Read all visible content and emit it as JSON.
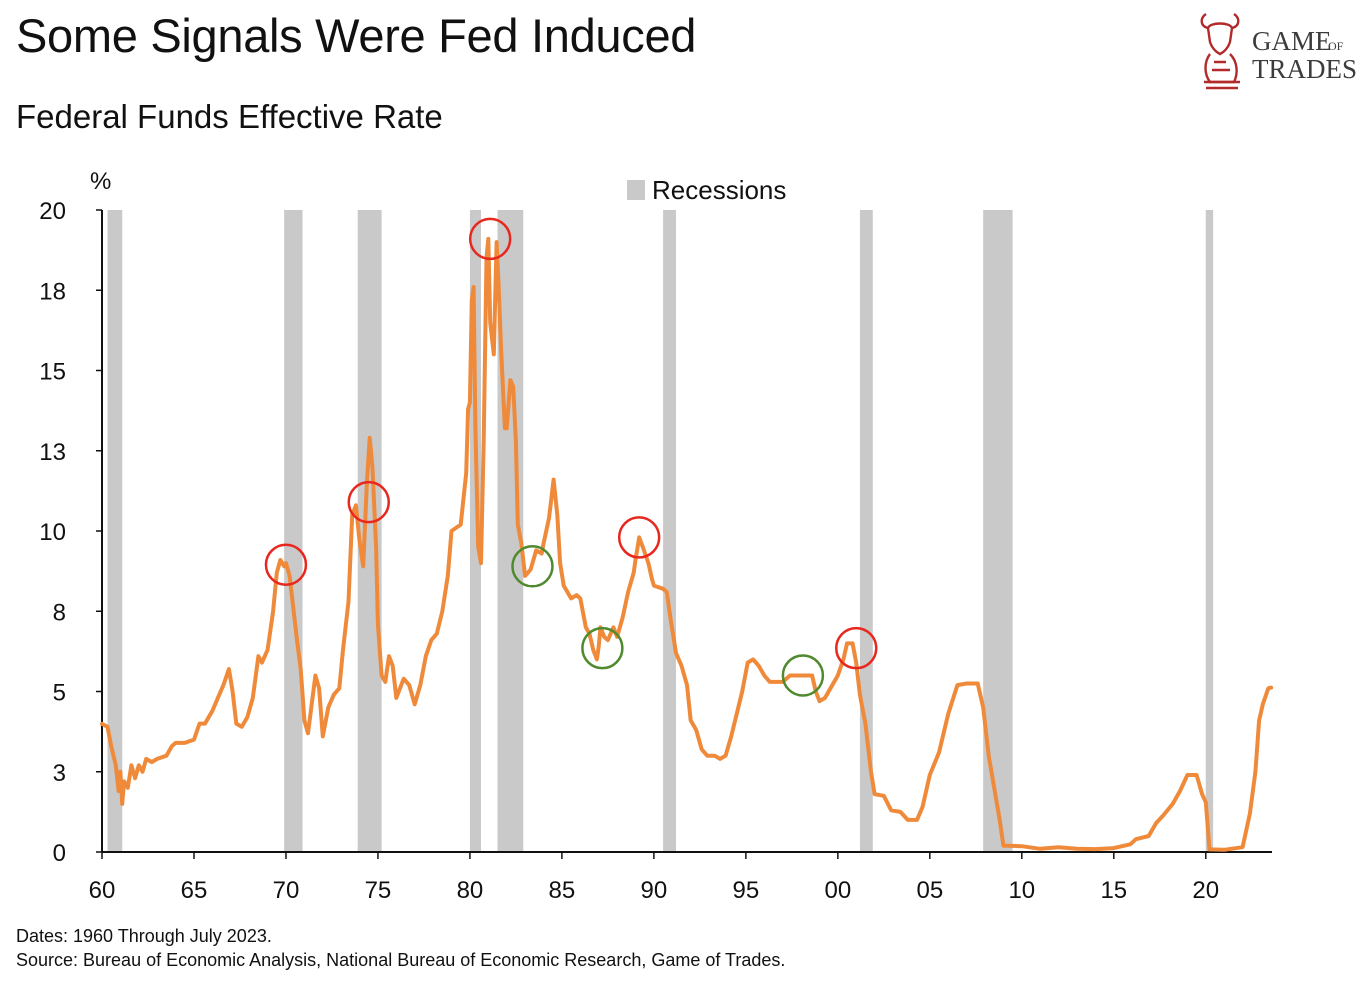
{
  "title": "Some Signals Were Fed Induced",
  "subtitle": "Federal Funds Effective Rate",
  "footer": {
    "dates": "Dates: 1960 Through July 2023.",
    "source": "Source: Bureau of Economic Analysis, National Bureau of Economic Research, Game of Trades."
  },
  "logo": {
    "line1": "GAME",
    "line1_small": "OF",
    "line2": "TRADES",
    "icon": "bull-knight-icon",
    "color": "#b22a2a"
  },
  "colors": {
    "line": "#ef8a3a",
    "recession": "#c9c9c9",
    "red_circle": "#e8281e",
    "green_circle": "#4f8a2e"
  },
  "chart_data": {
    "type": "line",
    "ylabel": "%",
    "ylim": [
      0,
      20
    ],
    "xlim": [
      1960,
      2023.6
    ],
    "y_ticks": [
      {
        "value": 0,
        "label": "0"
      },
      {
        "value": 2.5,
        "label": "3"
      },
      {
        "value": 5,
        "label": "5"
      },
      {
        "value": 7.5,
        "label": "8"
      },
      {
        "value": 10,
        "label": "10"
      },
      {
        "value": 12.5,
        "label": "13"
      },
      {
        "value": 15,
        "label": "15"
      },
      {
        "value": 17.5,
        "label": "18"
      },
      {
        "value": 20,
        "label": "20"
      }
    ],
    "x_ticks": [
      {
        "value": 1960,
        "label": "60"
      },
      {
        "value": 1965,
        "label": "65"
      },
      {
        "value": 1970,
        "label": "70"
      },
      {
        "value": 1975,
        "label": "75"
      },
      {
        "value": 1980,
        "label": "80"
      },
      {
        "value": 1985,
        "label": "85"
      },
      {
        "value": 1990,
        "label": "90"
      },
      {
        "value": 1995,
        "label": "95"
      },
      {
        "value": 2000,
        "label": "00"
      },
      {
        "value": 2005,
        "label": "05"
      },
      {
        "value": 2010,
        "label": "10"
      },
      {
        "value": 2015,
        "label": "15"
      },
      {
        "value": 2020,
        "label": "20"
      }
    ],
    "legend": {
      "label": "Recessions",
      "position": "top-center"
    },
    "recessions": [
      [
        1960.3,
        1961.1
      ],
      [
        1969.9,
        1970.9
      ],
      [
        1973.9,
        1975.2
      ],
      [
        1980.0,
        1980.6
      ],
      [
        1981.5,
        1982.9
      ],
      [
        1990.5,
        1991.2
      ],
      [
        2001.2,
        2001.9
      ],
      [
        2007.9,
        2009.5
      ],
      [
        2020.0,
        2020.4
      ]
    ],
    "series": [
      {
        "points": [
          [
            1960.0,
            3.99
          ],
          [
            1960.3,
            3.9
          ],
          [
            1960.5,
            3.3
          ],
          [
            1960.75,
            2.7
          ],
          [
            1960.9,
            1.9
          ],
          [
            1961.0,
            2.5
          ],
          [
            1961.1,
            1.5
          ],
          [
            1961.2,
            2.2
          ],
          [
            1961.4,
            2.0
          ],
          [
            1961.6,
            2.7
          ],
          [
            1961.8,
            2.3
          ],
          [
            1962.0,
            2.7
          ],
          [
            1962.2,
            2.5
          ],
          [
            1962.4,
            2.9
          ],
          [
            1962.7,
            2.8
          ],
          [
            1963.0,
            2.9
          ],
          [
            1963.5,
            3.0
          ],
          [
            1963.8,
            3.3
          ],
          [
            1964.0,
            3.4
          ],
          [
            1964.5,
            3.4
          ],
          [
            1965.0,
            3.5
          ],
          [
            1965.3,
            4.0
          ],
          [
            1965.6,
            4.0
          ],
          [
            1966.0,
            4.4
          ],
          [
            1966.3,
            4.8
          ],
          [
            1966.6,
            5.2
          ],
          [
            1966.9,
            5.7
          ],
          [
            1967.1,
            5.0
          ],
          [
            1967.3,
            4.0
          ],
          [
            1967.6,
            3.9
          ],
          [
            1967.9,
            4.2
          ],
          [
            1968.2,
            4.8
          ],
          [
            1968.5,
            6.1
          ],
          [
            1968.7,
            5.9
          ],
          [
            1969.0,
            6.3
          ],
          [
            1969.3,
            7.5
          ],
          [
            1969.5,
            8.7
          ],
          [
            1969.7,
            9.1
          ],
          [
            1969.9,
            8.9
          ],
          [
            1970.0,
            9.0
          ],
          [
            1970.2,
            8.6
          ],
          [
            1970.4,
            7.6
          ],
          [
            1970.6,
            6.6
          ],
          [
            1970.8,
            5.7
          ],
          [
            1971.0,
            4.1
          ],
          [
            1971.2,
            3.7
          ],
          [
            1971.4,
            4.6
          ],
          [
            1971.6,
            5.5
          ],
          [
            1971.8,
            5.1
          ],
          [
            1972.0,
            3.6
          ],
          [
            1972.3,
            4.5
          ],
          [
            1972.6,
            4.9
          ],
          [
            1972.9,
            5.1
          ],
          [
            1973.1,
            6.3
          ],
          [
            1973.4,
            7.8
          ],
          [
            1973.6,
            10.5
          ],
          [
            1973.8,
            10.8
          ],
          [
            1974.0,
            9.7
          ],
          [
            1974.2,
            8.9
          ],
          [
            1974.4,
            11.5
          ],
          [
            1974.55,
            12.9
          ],
          [
            1974.7,
            12.0
          ],
          [
            1974.9,
            9.5
          ],
          [
            1975.0,
            7.1
          ],
          [
            1975.2,
            5.5
          ],
          [
            1975.4,
            5.3
          ],
          [
            1975.6,
            6.1
          ],
          [
            1975.8,
            5.8
          ],
          [
            1976.0,
            4.8
          ],
          [
            1976.4,
            5.4
          ],
          [
            1976.7,
            5.2
          ],
          [
            1977.0,
            4.6
          ],
          [
            1977.3,
            5.2
          ],
          [
            1977.6,
            6.1
          ],
          [
            1977.9,
            6.6
          ],
          [
            1978.2,
            6.8
          ],
          [
            1978.5,
            7.5
          ],
          [
            1978.8,
            8.6
          ],
          [
            1979.0,
            10.0
          ],
          [
            1979.5,
            10.2
          ],
          [
            1979.8,
            11.8
          ],
          [
            1979.9,
            13.8
          ],
          [
            1980.0,
            14.0
          ],
          [
            1980.1,
            17.2
          ],
          [
            1980.2,
            17.6
          ],
          [
            1980.3,
            13.2
          ],
          [
            1980.45,
            9.5
          ],
          [
            1980.6,
            9.0
          ],
          [
            1980.75,
            12.8
          ],
          [
            1980.9,
            18.5
          ],
          [
            1981.0,
            19.1
          ],
          [
            1981.1,
            16.5
          ],
          [
            1981.3,
            15.5
          ],
          [
            1981.45,
            19.0
          ],
          [
            1981.55,
            17.8
          ],
          [
            1981.7,
            15.6
          ],
          [
            1981.9,
            13.2
          ],
          [
            1982.0,
            13.2
          ],
          [
            1982.2,
            14.7
          ],
          [
            1982.35,
            14.5
          ],
          [
            1982.5,
            12.8
          ],
          [
            1982.6,
            10.2
          ],
          [
            1982.8,
            9.6
          ],
          [
            1983.0,
            8.6
          ],
          [
            1983.3,
            8.8
          ],
          [
            1983.6,
            9.4
          ],
          [
            1983.9,
            9.3
          ],
          [
            1984.0,
            9.6
          ],
          [
            1984.3,
            10.4
          ],
          [
            1984.55,
            11.6
          ],
          [
            1984.75,
            10.5
          ],
          [
            1984.9,
            9.0
          ],
          [
            1985.1,
            8.3
          ],
          [
            1985.5,
            7.9
          ],
          [
            1985.8,
            8.0
          ],
          [
            1986.0,
            7.9
          ],
          [
            1986.3,
            7.0
          ],
          [
            1986.5,
            6.8
          ],
          [
            1986.7,
            6.3
          ],
          [
            1986.9,
            6.0
          ],
          [
            1987.0,
            6.4
          ],
          [
            1987.1,
            7.0
          ],
          [
            1987.3,
            6.7
          ],
          [
            1987.5,
            6.6
          ],
          [
            1987.8,
            7.0
          ],
          [
            1988.0,
            6.7
          ],
          [
            1988.3,
            7.3
          ],
          [
            1988.6,
            8.1
          ],
          [
            1988.9,
            8.7
          ],
          [
            1989.0,
            9.1
          ],
          [
            1989.2,
            9.8
          ],
          [
            1989.4,
            9.5
          ],
          [
            1989.7,
            9.0
          ],
          [
            1989.9,
            8.5
          ],
          [
            1990.0,
            8.3
          ],
          [
            1990.5,
            8.2
          ],
          [
            1990.7,
            8.1
          ],
          [
            1990.9,
            7.3
          ],
          [
            1991.2,
            6.2
          ],
          [
            1991.5,
            5.8
          ],
          [
            1991.8,
            5.2
          ],
          [
            1992.0,
            4.1
          ],
          [
            1992.3,
            3.8
          ],
          [
            1992.6,
            3.2
          ],
          [
            1992.9,
            3.0
          ],
          [
            1993.3,
            3.0
          ],
          [
            1993.6,
            2.9
          ],
          [
            1993.9,
            3.0
          ],
          [
            1994.2,
            3.6
          ],
          [
            1994.5,
            4.3
          ],
          [
            1994.8,
            5.0
          ],
          [
            1995.1,
            5.9
          ],
          [
            1995.4,
            6.0
          ],
          [
            1995.7,
            5.8
          ],
          [
            1996.0,
            5.5
          ],
          [
            1996.3,
            5.3
          ],
          [
            1996.6,
            5.3
          ],
          [
            1997.0,
            5.3
          ],
          [
            1997.4,
            5.5
          ],
          [
            1997.8,
            5.5
          ],
          [
            1998.2,
            5.5
          ],
          [
            1998.6,
            5.5
          ],
          [
            1998.8,
            5.0
          ],
          [
            1999.0,
            4.7
          ],
          [
            1999.3,
            4.8
          ],
          [
            1999.6,
            5.1
          ],
          [
            2000.0,
            5.5
          ],
          [
            2000.3,
            6.0
          ],
          [
            2000.5,
            6.5
          ],
          [
            2000.8,
            6.5
          ],
          [
            2001.0,
            5.9
          ],
          [
            2001.2,
            4.9
          ],
          [
            2001.5,
            4.0
          ],
          [
            2001.8,
            2.5
          ],
          [
            2002.0,
            1.8
          ],
          [
            2002.5,
            1.75
          ],
          [
            2002.9,
            1.3
          ],
          [
            2003.4,
            1.25
          ],
          [
            2003.8,
            1.0
          ],
          [
            2004.3,
            1.0
          ],
          [
            2004.6,
            1.4
          ],
          [
            2005.0,
            2.4
          ],
          [
            2005.5,
            3.1
          ],
          [
            2006.0,
            4.3
          ],
          [
            2006.5,
            5.2
          ],
          [
            2007.0,
            5.25
          ],
          [
            2007.6,
            5.25
          ],
          [
            2007.9,
            4.5
          ],
          [
            2008.2,
            3.0
          ],
          [
            2008.5,
            2.0
          ],
          [
            2008.8,
            1.0
          ],
          [
            2009.0,
            0.2
          ],
          [
            2010.0,
            0.18
          ],
          [
            2011.0,
            0.1
          ],
          [
            2012.0,
            0.15
          ],
          [
            2013.0,
            0.1
          ],
          [
            2014.0,
            0.09
          ],
          [
            2015.0,
            0.12
          ],
          [
            2015.9,
            0.24
          ],
          [
            2016.2,
            0.4
          ],
          [
            2016.9,
            0.5
          ],
          [
            2017.3,
            0.9
          ],
          [
            2017.7,
            1.15
          ],
          [
            2018.2,
            1.5
          ],
          [
            2018.6,
            1.9
          ],
          [
            2019.0,
            2.4
          ],
          [
            2019.5,
            2.4
          ],
          [
            2019.8,
            1.8
          ],
          [
            2020.0,
            1.55
          ],
          [
            2020.2,
            0.08
          ],
          [
            2021.0,
            0.07
          ],
          [
            2022.0,
            0.15
          ],
          [
            2022.4,
            1.2
          ],
          [
            2022.7,
            2.5
          ],
          [
            2022.9,
            4.1
          ],
          [
            2023.1,
            4.6
          ],
          [
            2023.4,
            5.1
          ],
          [
            2023.55,
            5.12
          ]
        ]
      }
    ],
    "annotations": [
      {
        "type": "circle",
        "color": "red",
        "x": 1970.0,
        "y": 8.95
      },
      {
        "type": "circle",
        "color": "red",
        "x": 1974.5,
        "y": 10.9
      },
      {
        "type": "circle",
        "color": "red",
        "x": 1981.1,
        "y": 19.1
      },
      {
        "type": "circle",
        "color": "green",
        "x": 1983.4,
        "y": 8.9
      },
      {
        "type": "circle",
        "color": "green",
        "x": 1987.2,
        "y": 6.35
      },
      {
        "type": "circle",
        "color": "red",
        "x": 1989.2,
        "y": 9.8
      },
      {
        "type": "circle",
        "color": "green",
        "x": 1998.1,
        "y": 5.5
      },
      {
        "type": "circle",
        "color": "red",
        "x": 2001.0,
        "y": 6.35
      }
    ]
  }
}
